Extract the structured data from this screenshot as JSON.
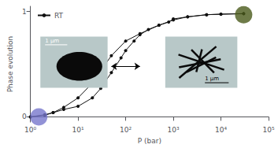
{
  "chart_data": {
    "type": "line",
    "xlabel": "P (bar)",
    "ylabel": "Phase evolution",
    "log": "x",
    "xlim": [
      1,
      100000
    ],
    "xticks": [
      {
        "value": 1,
        "label": "10⁰"
      },
      {
        "value": 10,
        "label": "10¹"
      },
      {
        "value": 100,
        "label": "10²"
      },
      {
        "value": 1000,
        "label": "10³"
      },
      {
        "value": 10000,
        "label": "10⁴"
      },
      {
        "value": 100000,
        "label": "10⁵"
      }
    ],
    "ylim": [
      -0.05,
      1.05
    ],
    "yticks": [
      0,
      1
    ],
    "grid": false,
    "legend": "upper left",
    "series": [
      {
        "name": "RT",
        "color": "#111111",
        "marker": "circle",
        "x": [
          1,
          2,
          3,
          5,
          10,
          20,
          30,
          50,
          80,
          100,
          150,
          200,
          300,
          500,
          800,
          1000,
          2000,
          5000,
          10000,
          30000
        ],
        "values": [
          0.0,
          0.02,
          0.04,
          0.07,
          0.1,
          0.18,
          0.27,
          0.42,
          0.56,
          0.63,
          0.72,
          0.78,
          0.83,
          0.87,
          0.9,
          0.93,
          0.95,
          0.97,
          0.975,
          0.98
        ]
      },
      {
        "color": "#111111",
        "marker": "circle",
        "x": [
          30000,
          10000,
          5000,
          2000,
          1000,
          500,
          200,
          100,
          50,
          30,
          20,
          10,
          5,
          3,
          2,
          1
        ],
        "values": [
          0.98,
          0.975,
          0.97,
          0.95,
          0.92,
          0.87,
          0.79,
          0.72,
          0.58,
          0.44,
          0.32,
          0.18,
          0.09,
          0.04,
          0.015,
          0.0
        ]
      }
    ],
    "points": [
      {
        "x": 1.5,
        "y": 0.0,
        "color": "#7777cc"
      },
      {
        "x": 30000,
        "y": 0.97,
        "color": "#4a5a1a"
      }
    ],
    "arrow": {
      "x": [
        50,
        200
      ],
      "y": 0.48
    },
    "annotations": [
      "1 μm",
      "1 μm"
    ]
  }
}
